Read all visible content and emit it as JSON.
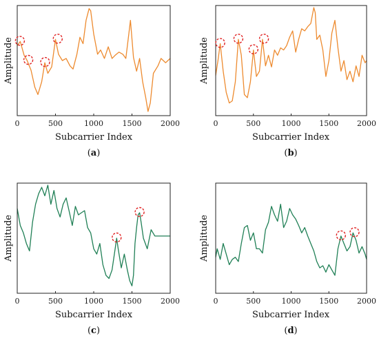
{
  "colors": {
    "orange": "#ED8A2E",
    "green": "#1F7F55",
    "marker": "#E02020",
    "axis": "#222222"
  },
  "chart_data": [
    {
      "id": "a",
      "type": "line",
      "caption_letter": "a",
      "xlabel": "Subcarrier Index",
      "ylabel": "Amplitude",
      "xlim": [
        0,
        2000
      ],
      "ylim": [
        0,
        1
      ],
      "xticks": [
        "0",
        "500",
        "1000",
        "1500",
        "2000"
      ],
      "color": "orange",
      "series": [
        {
          "x": [
            0,
            40,
            90,
            130,
            180,
            230,
            270,
            320,
            360,
            400,
            450,
            500,
            540,
            590,
            640,
            690,
            730,
            780,
            820,
            860,
            900,
            940,
            960,
            1000,
            1050,
            1090,
            1140,
            1190,
            1240,
            1280,
            1330,
            1380,
            1420,
            1460,
            1480,
            1520,
            1560,
            1600,
            1640,
            1680,
            1710,
            1740,
            1780,
            1840,
            1880,
            1940,
            2000
          ],
          "y": [
            0.64,
            0.68,
            0.55,
            0.5,
            0.41,
            0.25,
            0.18,
            0.3,
            0.48,
            0.38,
            0.44,
            0.7,
            0.56,
            0.5,
            0.52,
            0.45,
            0.42,
            0.56,
            0.72,
            0.66,
            0.88,
            0.99,
            0.97,
            0.75,
            0.56,
            0.6,
            0.52,
            0.63,
            0.52,
            0.55,
            0.58,
            0.56,
            0.52,
            0.76,
            0.88,
            0.53,
            0.4,
            0.52,
            0.3,
            0.15,
            0.02,
            0.1,
            0.38,
            0.45,
            0.52,
            0.48,
            0.52
          ]
        }
      ],
      "markers": [
        {
          "x": 35,
          "y": 0.68
        },
        {
          "x": 145,
          "y": 0.5
        },
        {
          "x": 365,
          "y": 0.48
        },
        {
          "x": 530,
          "y": 0.7
        }
      ]
    },
    {
      "id": "b",
      "type": "line",
      "caption_letter": "b",
      "xlabel": "Subcarrier Index",
      "ylabel": "Amplitude",
      "xlim": [
        0,
        2000
      ],
      "ylim": [
        0,
        1
      ],
      "xticks": [
        "0",
        "500",
        "1000",
        "1500",
        "2000"
      ],
      "color": "orange",
      "series": [
        {
          "x": [
            0,
            30,
            60,
            100,
            140,
            180,
            220,
            260,
            300,
            340,
            380,
            420,
            460,
            500,
            540,
            580,
            620,
            660,
            700,
            740,
            780,
            820,
            860,
            900,
            940,
            980,
            1020,
            1060,
            1100,
            1140,
            1180,
            1220,
            1260,
            1300,
            1320,
            1340,
            1380,
            1420,
            1460,
            1500,
            1540,
            1580,
            1620,
            1660,
            1700,
            1740,
            1780,
            1820,
            1860,
            1900,
            1940,
            1980,
            2000
          ],
          "y": [
            0.36,
            0.5,
            0.66,
            0.4,
            0.2,
            0.1,
            0.12,
            0.3,
            0.7,
            0.55,
            0.18,
            0.15,
            0.3,
            0.6,
            0.35,
            0.4,
            0.7,
            0.45,
            0.55,
            0.44,
            0.6,
            0.55,
            0.62,
            0.6,
            0.64,
            0.72,
            0.78,
            0.58,
            0.7,
            0.8,
            0.78,
            0.82,
            0.85,
            1.0,
            0.95,
            0.7,
            0.74,
            0.6,
            0.35,
            0.5,
            0.76,
            0.88,
            0.62,
            0.4,
            0.5,
            0.32,
            0.4,
            0.3,
            0.45,
            0.35,
            0.55,
            0.48,
            0.5
          ]
        }
      ],
      "markers": [
        {
          "x": 60,
          "y": 0.66
        },
        {
          "x": 300,
          "y": 0.7
        },
        {
          "x": 500,
          "y": 0.6
        },
        {
          "x": 640,
          "y": 0.7
        }
      ]
    },
    {
      "id": "c",
      "type": "line",
      "caption_letter": "c",
      "xlabel": "Subcarrier Index",
      "ylabel": "Amplitude",
      "xlim": [
        0,
        2000
      ],
      "ylim": [
        0,
        1
      ],
      "xticks": [
        "0",
        "500",
        "1000",
        "1500",
        "2000"
      ],
      "color": "green",
      "series": [
        {
          "x": [
            0,
            40,
            80,
            120,
            160,
            200,
            240,
            280,
            320,
            360,
            400,
            440,
            480,
            520,
            560,
            600,
            640,
            680,
            720,
            760,
            800,
            840,
            880,
            920,
            960,
            1000,
            1040,
            1080,
            1120,
            1160,
            1200,
            1240,
            1280,
            1300,
            1320,
            1360,
            1400,
            1440,
            1470,
            1500,
            1520,
            1540,
            1560,
            1580,
            1600,
            1620,
            1650,
            1700,
            1750,
            1800,
            2000
          ],
          "y": [
            0.78,
            0.62,
            0.55,
            0.45,
            0.38,
            0.65,
            0.82,
            0.92,
            0.98,
            0.9,
            1.0,
            0.82,
            0.95,
            0.78,
            0.7,
            0.82,
            0.88,
            0.75,
            0.62,
            0.8,
            0.72,
            0.74,
            0.76,
            0.6,
            0.55,
            0.4,
            0.35,
            0.45,
            0.25,
            0.15,
            0.12,
            0.2,
            0.4,
            0.5,
            0.4,
            0.22,
            0.35,
            0.2,
            0.1,
            0.05,
            0.15,
            0.45,
            0.6,
            0.72,
            0.74,
            0.65,
            0.5,
            0.4,
            0.58,
            0.52,
            0.52
          ]
        }
      ],
      "markers": [
        {
          "x": 1300,
          "y": 0.5
        },
        {
          "x": 1600,
          "y": 0.74
        }
      ]
    },
    {
      "id": "d",
      "type": "line",
      "caption_letter": "d",
      "xlabel": "Subcarrier Index",
      "ylabel": "Amplitude",
      "xlim": [
        0,
        2000
      ],
      "ylim": [
        0,
        1
      ],
      "xticks": [
        "0",
        "500",
        "1000",
        "1500",
        "2000"
      ],
      "color": "green",
      "series": [
        {
          "x": [
            0,
            20,
            60,
            100,
            140,
            180,
            220,
            260,
            300,
            340,
            380,
            420,
            460,
            500,
            540,
            580,
            620,
            660,
            700,
            740,
            780,
            820,
            860,
            900,
            940,
            980,
            1020,
            1060,
            1100,
            1140,
            1180,
            1220,
            1260,
            1300,
            1340,
            1380,
            1420,
            1460,
            1500,
            1540,
            1580,
            1620,
            1660,
            1700,
            1740,
            1780,
            1820,
            1860,
            1900,
            1940,
            1980,
            2000
          ],
          "y": [
            0.32,
            0.4,
            0.3,
            0.45,
            0.35,
            0.25,
            0.3,
            0.32,
            0.28,
            0.45,
            0.6,
            0.62,
            0.48,
            0.55,
            0.4,
            0.4,
            0.36,
            0.58,
            0.65,
            0.8,
            0.72,
            0.66,
            0.82,
            0.6,
            0.66,
            0.78,
            0.72,
            0.68,
            0.62,
            0.55,
            0.6,
            0.52,
            0.45,
            0.38,
            0.28,
            0.22,
            0.24,
            0.18,
            0.25,
            0.2,
            0.15,
            0.4,
            0.52,
            0.45,
            0.38,
            0.42,
            0.55,
            0.48,
            0.36,
            0.42,
            0.35,
            0.3
          ]
        }
      ],
      "markers": [
        {
          "x": 1660,
          "y": 0.52
        },
        {
          "x": 1840,
          "y": 0.55
        }
      ]
    }
  ]
}
